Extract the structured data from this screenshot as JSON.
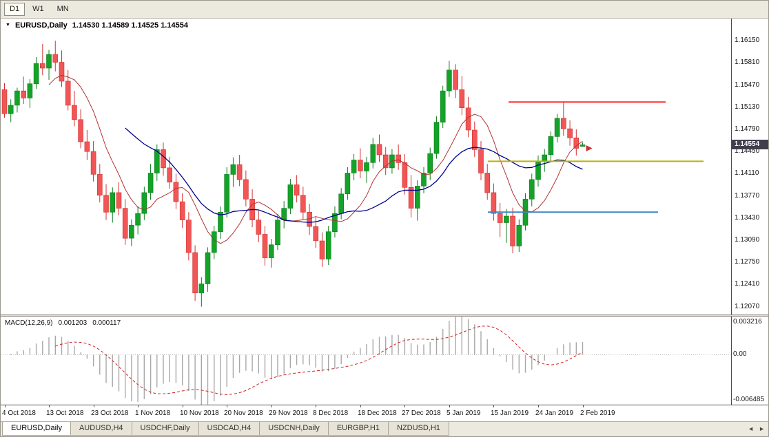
{
  "toolbar": {
    "timeframes": [
      {
        "label": "D1",
        "active": true
      },
      {
        "label": "W1",
        "active": false
      },
      {
        "label": "MN",
        "active": false
      }
    ]
  },
  "chart": {
    "marker_icon": "▼",
    "title": "EURUSD,Daily",
    "ohlc_text": "1.14530 1.14589 1.14525 1.14554",
    "current_price": "1.14554"
  },
  "macd": {
    "label": "MACD(12,26,9)",
    "value_main": "0.001203",
    "value_signal": "0.000117",
    "axis_max": "0.003216",
    "axis_zero": "0.00",
    "axis_min": "-0.006485"
  },
  "tabs": {
    "items": [
      {
        "label": "EURUSD,Daily",
        "active": true
      },
      {
        "label": "AUDUSD,H4",
        "active": false
      },
      {
        "label": "USDCHF,Daily",
        "active": false
      },
      {
        "label": "USDCAD,H4",
        "active": false
      },
      {
        "label": "USDCNH,Daily",
        "active": false
      },
      {
        "label": "EURGBP,H1",
        "active": false
      },
      {
        "label": "NZDUSD,H1",
        "active": false
      }
    ],
    "scroll_left": "◄",
    "scroll_right": "►"
  },
  "chart_data": {
    "type": "candlestick",
    "symbol": "EURUSD",
    "timeframe": "Daily",
    "title": "EURUSD,Daily",
    "current_bar": {
      "open": 1.1453,
      "high": 1.14589,
      "low": 1.14525,
      "close": 1.14554
    },
    "current_price": 1.14554,
    "y_axis": {
      "max": 1.1649,
      "min": 1.1195,
      "ticks": [
        "1.16150",
        "1.15810",
        "1.15470",
        "1.15130",
        "1.14790",
        "1.14450",
        "1.14110",
        "1.13770",
        "1.13430",
        "1.13090",
        "1.12750",
        "1.12410",
        "1.12070"
      ]
    },
    "x_labels": [
      "4 Oct 2018",
      "13 Oct 2018",
      "23 Oct 2018",
      "1 Nov 2018",
      "10 Nov 2018",
      "20 Nov 2018",
      "29 Nov 2018",
      "8 Dec 2018",
      "18 Dec 2018",
      "27 Dec 2018",
      "5 Jan 2019",
      "15 Jan 2019",
      "24 Jan 2019",
      "2 Feb 2019"
    ],
    "x_label_step": 7,
    "candles": [
      [
        1.154,
        1.155,
        1.1497,
        1.1503
      ],
      [
        1.1503,
        1.1525,
        1.149,
        1.1516
      ],
      [
        1.1516,
        1.1543,
        1.1505,
        1.1538
      ],
      [
        1.1538,
        1.156,
        1.1518,
        1.1527
      ],
      [
        1.1527,
        1.1556,
        1.1512,
        1.1549
      ],
      [
        1.1549,
        1.159,
        1.1541,
        1.158
      ],
      [
        1.158,
        1.161,
        1.1562,
        1.1573
      ],
      [
        1.1573,
        1.1601,
        1.1555,
        1.1594
      ],
      [
        1.1594,
        1.1615,
        1.1568,
        1.1582
      ],
      [
        1.1582,
        1.16,
        1.1544,
        1.1553
      ],
      [
        1.1553,
        1.157,
        1.1508,
        1.1516
      ],
      [
        1.1516,
        1.1538,
        1.1484,
        1.1494
      ],
      [
        1.1494,
        1.151,
        1.145,
        1.146
      ],
      [
        1.146,
        1.1478,
        1.1432,
        1.1445
      ],
      [
        1.1445,
        1.1461,
        1.1399,
        1.141
      ],
      [
        1.141,
        1.1426,
        1.1367,
        1.1378
      ],
      [
        1.1378,
        1.1395,
        1.134,
        1.1352
      ],
      [
        1.1352,
        1.139,
        1.1336,
        1.1382
      ],
      [
        1.1382,
        1.1398,
        1.1347,
        1.1358
      ],
      [
        1.1358,
        1.1372,
        1.1302,
        1.1312
      ],
      [
        1.1312,
        1.1341,
        1.13,
        1.1332
      ],
      [
        1.1332,
        1.1361,
        1.1318,
        1.135
      ],
      [
        1.135,
        1.1391,
        1.134,
        1.1382
      ],
      [
        1.1382,
        1.1426,
        1.1371,
        1.1412
      ],
      [
        1.1412,
        1.1456,
        1.14,
        1.1448
      ],
      [
        1.1448,
        1.1459,
        1.1408,
        1.142
      ],
      [
        1.142,
        1.1437,
        1.1388,
        1.1398
      ],
      [
        1.1398,
        1.1411,
        1.1357,
        1.1368
      ],
      [
        1.1368,
        1.1381,
        1.1328,
        1.134
      ],
      [
        1.134,
        1.1352,
        1.1278,
        1.129
      ],
      [
        1.129,
        1.1301,
        1.1216,
        1.1228
      ],
      [
        1.1228,
        1.1252,
        1.1207,
        1.1242
      ],
      [
        1.1242,
        1.1298,
        1.123,
        1.129
      ],
      [
        1.129,
        1.1331,
        1.128,
        1.1322
      ],
      [
        1.1322,
        1.1361,
        1.1311,
        1.1352
      ],
      [
        1.1352,
        1.1421,
        1.1344,
        1.141
      ],
      [
        1.141,
        1.1436,
        1.1391,
        1.1425
      ],
      [
        1.1425,
        1.144,
        1.1392,
        1.1402
      ],
      [
        1.1402,
        1.1416,
        1.1361,
        1.1372
      ],
      [
        1.1372,
        1.1387,
        1.1329,
        1.134
      ],
      [
        1.134,
        1.1354,
        1.1306,
        1.1318
      ],
      [
        1.1318,
        1.1331,
        1.127,
        1.1282
      ],
      [
        1.1282,
        1.1311,
        1.1267,
        1.1302
      ],
      [
        1.1302,
        1.1349,
        1.1294,
        1.134
      ],
      [
        1.134,
        1.1369,
        1.1327,
        1.1358
      ],
      [
        1.1358,
        1.1403,
        1.1349,
        1.1394
      ],
      [
        1.1394,
        1.1409,
        1.1367,
        1.1378
      ],
      [
        1.1378,
        1.1391,
        1.1341,
        1.1352
      ],
      [
        1.1352,
        1.1365,
        1.1317,
        1.133
      ],
      [
        1.133,
        1.1344,
        1.1297,
        1.1308
      ],
      [
        1.1308,
        1.1321,
        1.1268,
        1.128
      ],
      [
        1.128,
        1.1331,
        1.1271,
        1.1322
      ],
      [
        1.1322,
        1.1361,
        1.1313,
        1.135
      ],
      [
        1.135,
        1.1389,
        1.1341,
        1.138
      ],
      [
        1.138,
        1.1421,
        1.1371,
        1.1412
      ],
      [
        1.1412,
        1.1441,
        1.1401,
        1.1432
      ],
      [
        1.1432,
        1.145,
        1.1404,
        1.1415
      ],
      [
        1.1415,
        1.1437,
        1.1397,
        1.1428
      ],
      [
        1.1428,
        1.1466,
        1.1419,
        1.1456
      ],
      [
        1.1456,
        1.1471,
        1.1429,
        1.144
      ],
      [
        1.144,
        1.1452,
        1.1409,
        1.142
      ],
      [
        1.142,
        1.1449,
        1.1411,
        1.144
      ],
      [
        1.144,
        1.1456,
        1.1417,
        1.1428
      ],
      [
        1.1428,
        1.1441,
        1.1379,
        1.139
      ],
      [
        1.139,
        1.1409,
        1.1344,
        1.1358
      ],
      [
        1.1358,
        1.1401,
        1.1339,
        1.1392
      ],
      [
        1.1392,
        1.1421,
        1.1381,
        1.1412
      ],
      [
        1.1412,
        1.1451,
        1.1401,
        1.1442
      ],
      [
        1.1442,
        1.1499,
        1.1434,
        1.149
      ],
      [
        1.149,
        1.1546,
        1.1481,
        1.1538
      ],
      [
        1.1538,
        1.1584,
        1.1529,
        1.157
      ],
      [
        1.157,
        1.1579,
        1.1527,
        1.154
      ],
      [
        1.154,
        1.1561,
        1.1501,
        1.1512
      ],
      [
        1.1512,
        1.1529,
        1.1467,
        1.1478
      ],
      [
        1.1478,
        1.1491,
        1.1437,
        1.1448
      ],
      [
        1.1448,
        1.1461,
        1.1401,
        1.1412
      ],
      [
        1.1412,
        1.1426,
        1.1371,
        1.1382
      ],
      [
        1.1382,
        1.1396,
        1.1339,
        1.135
      ],
      [
        1.135,
        1.1366,
        1.1314,
        1.1336
      ],
      [
        1.1336,
        1.1357,
        1.1305,
        1.1346
      ],
      [
        1.1346,
        1.1359,
        1.1289,
        1.13
      ],
      [
        1.13,
        1.1341,
        1.1291,
        1.1332
      ],
      [
        1.1332,
        1.1381,
        1.1324,
        1.1372
      ],
      [
        1.1372,
        1.1411,
        1.1361,
        1.1402
      ],
      [
        1.1402,
        1.1439,
        1.1391,
        1.143
      ],
      [
        1.143,
        1.1449,
        1.1414,
        1.144
      ],
      [
        1.144,
        1.1476,
        1.1431,
        1.1468
      ],
      [
        1.1468,
        1.1503,
        1.1459,
        1.1496
      ],
      [
        1.1496,
        1.152,
        1.1469,
        1.148
      ],
      [
        1.148,
        1.1493,
        1.1454,
        1.1466
      ],
      [
        1.1466,
        1.1479,
        1.1439,
        1.145
      ],
      [
        1.1453,
        1.14589,
        1.14525,
        1.14554
      ]
    ],
    "colors": {
      "up_fill": "#14a228",
      "up_stroke": "#0c7d1d",
      "down_fill": "#f15555",
      "down_stroke": "#d32f2f",
      "price_tag_bg": "#3f3f4d",
      "price_tag_text": "#ffffff"
    },
    "moving_averages": [
      {
        "name": "fast-ma",
        "period": 8,
        "color": "#b03333",
        "width": 1
      },
      {
        "name": "slow-ma",
        "period": 20,
        "color": "#00008b",
        "width": 1.3
      }
    ],
    "hlines": [
      {
        "name": "resistance-line",
        "price": 1.1521,
        "color": "#ff2d2d",
        "width": 2,
        "x1": 0.695,
        "x2": 0.91
      },
      {
        "name": "mid-line",
        "price": 1.143,
        "color": "#b8b400",
        "width": 2,
        "x1": 0.667,
        "x2": 0.962
      },
      {
        "name": "support-line",
        "price": 1.1352,
        "color": "#3d86c6",
        "width": 2,
        "x1": 0.667,
        "x2": 0.9
      }
    ],
    "arrow_marker": {
      "price": 1.145,
      "color": "#d03030"
    },
    "macd": {
      "fast": 12,
      "slow": 26,
      "signal": 9,
      "histogram_color": "#a8a8a8",
      "signal_color": "#d02020",
      "zero_line_color": "#c0c0c0",
      "last_macd": 0.001203,
      "last_signal": 0.000117,
      "axis_labels": {
        "max": "0.003216",
        "zero": "0.00",
        "min": "-0.006485"
      }
    }
  }
}
